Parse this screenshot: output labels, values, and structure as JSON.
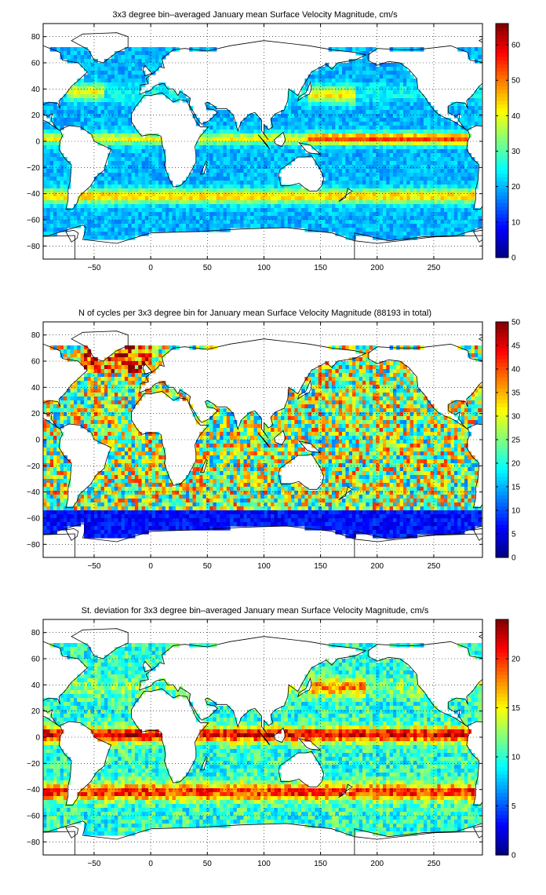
{
  "chart_data": [
    {
      "type": "heatmap",
      "title": "3x3 degree bin–averaged January mean Surface Velocity Magnitude, cm/s",
      "xlim": [
        -95,
        293
      ],
      "ylim": [
        -90,
        90
      ],
      "xticks": [
        -50,
        0,
        50,
        100,
        150,
        200,
        250
      ],
      "yticks": [
        80,
        60,
        40,
        20,
        0,
        -20,
        -40,
        -60,
        -80
      ],
      "grid": true,
      "colorbar": {
        "min": 0,
        "max": 66,
        "ticks": [
          0,
          10,
          20,
          30,
          40,
          50,
          60
        ]
      },
      "colormap": "jet"
    },
    {
      "type": "heatmap",
      "title": "N of cycles per 3x3 degree bin for January mean Surface Velocity Magnitude (88193 in total)",
      "xlim": [
        -95,
        293
      ],
      "ylim": [
        -90,
        90
      ],
      "xticks": [
        -50,
        0,
        50,
        100,
        150,
        200,
        250
      ],
      "yticks": [
        80,
        60,
        40,
        20,
        0,
        -20,
        -40,
        -60,
        -80
      ],
      "grid": true,
      "colorbar": {
        "min": 0,
        "max": 50,
        "ticks": [
          0,
          5,
          10,
          15,
          20,
          25,
          30,
          35,
          40,
          45,
          50
        ]
      },
      "colormap": "jet"
    },
    {
      "type": "heatmap",
      "title": "St. deviation for 3x3 degree bin–averaged January mean Surface Velocity Magnitude, cm/s",
      "xlim": [
        -95,
        293
      ],
      "ylim": [
        -90,
        90
      ],
      "xticks": [
        -50,
        0,
        50,
        100,
        150,
        200,
        250
      ],
      "yticks": [
        80,
        60,
        40,
        20,
        0,
        -20,
        -40,
        -60,
        -80
      ],
      "grid": true,
      "colorbar": {
        "min": 0,
        "max": 24,
        "ticks": [
          0,
          5,
          10,
          15,
          20
        ]
      },
      "colormap": "jet"
    }
  ]
}
